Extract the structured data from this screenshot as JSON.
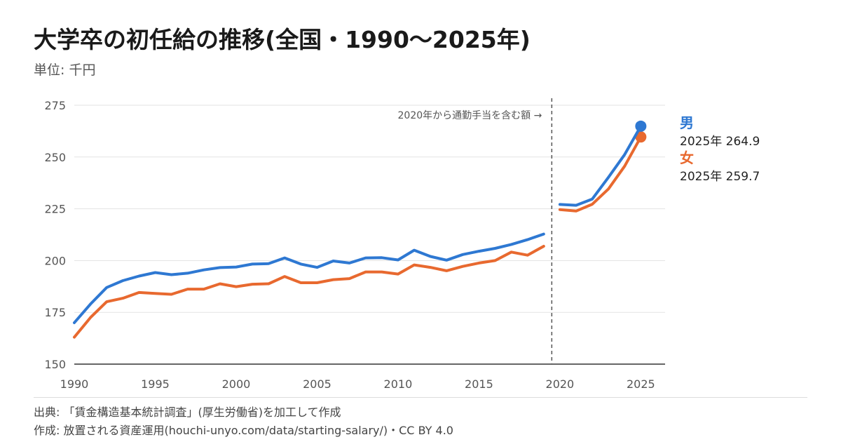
{
  "title": "大学卒の初任給の推移(全国・1990〜2025年)",
  "subtitle": "単位: 千円",
  "annotation": "2020年から通勤手当を含む額 →",
  "footer": {
    "source": "出典: 「賃金構造基本統計調査」(厚生労働省)を加工して作成",
    "credit": "作成: 放置される資産運用(houchi-unyo.com/data/starting-salary/)・CC BY 4.0"
  },
  "colors": {
    "male": "#2e78d2",
    "female": "#e8692f",
    "grid": "#e3e3e3",
    "axis": "#333333"
  },
  "chart_data": {
    "type": "line",
    "title": "大学卒の初任給の推移(全国・1990〜2025年)",
    "ylabel": "単位: 千円",
    "xlim": [
      1990,
      2026.5
    ],
    "ylim": [
      150,
      275
    ],
    "x_ticks": [
      1990,
      1995,
      2000,
      2005,
      2010,
      2015,
      2020,
      2025
    ],
    "y_ticks": [
      150,
      175,
      200,
      225,
      250,
      275
    ],
    "grid": "horizontal",
    "legend": "right-end labels",
    "break_after": 2019,
    "x": [
      1990,
      1991,
      1992,
      1993,
      1994,
      1995,
      1996,
      1997,
      1998,
      1999,
      2000,
      2001,
      2002,
      2003,
      2004,
      2005,
      2006,
      2007,
      2008,
      2009,
      2010,
      2011,
      2012,
      2013,
      2014,
      2015,
      2016,
      2017,
      2018,
      2019,
      2020,
      2021,
      2022,
      2023,
      2024,
      2025
    ],
    "series": [
      {
        "name": "男",
        "end_label": "2025年 264.9",
        "values": [
          170,
          179,
          187,
          190.3,
          192.5,
          194.2,
          193.2,
          193.9,
          195.5,
          196.6,
          196.9,
          198.3,
          198.5,
          201.3,
          198.3,
          196.7,
          199.8,
          198.8,
          201.3,
          201.4,
          200.3,
          205,
          202,
          200.2,
          202.9,
          204.5,
          205.9,
          207.8,
          210.1,
          212.8,
          227.1,
          226.7,
          229.7,
          240.2,
          251.2,
          264.9
        ]
      },
      {
        "name": "女",
        "end_label": "2025年 259.7",
        "values": [
          163,
          172.5,
          180.1,
          181.8,
          184.6,
          184.1,
          183.7,
          186.2,
          186.2,
          188.8,
          187.4,
          188.6,
          188.8,
          192.3,
          189.3,
          189.3,
          190.8,
          191.3,
          194.5,
          194.5,
          193.5,
          197.9,
          196.7,
          195.1,
          197.2,
          198.8,
          200,
          204.1,
          202.6,
          206.9,
          224.6,
          223.9,
          227.2,
          234.6,
          245.6,
          259.7
        ]
      }
    ]
  }
}
